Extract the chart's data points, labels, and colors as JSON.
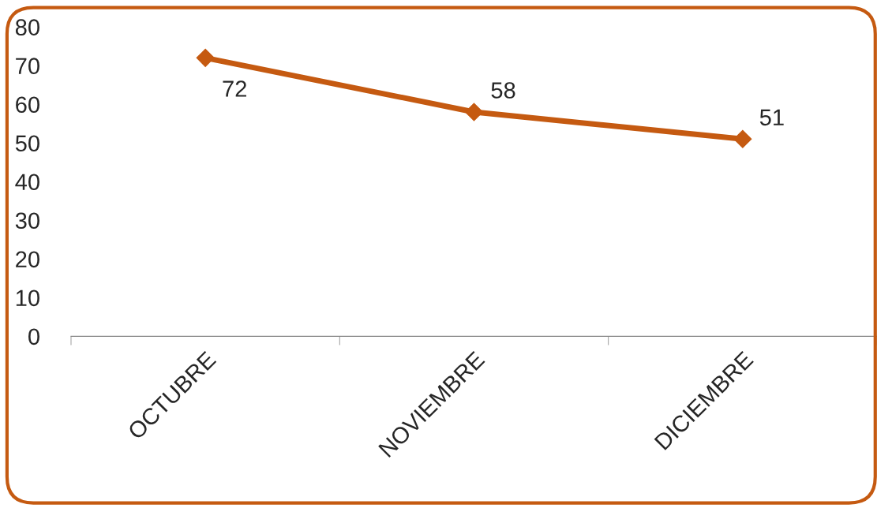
{
  "chart_data": {
    "type": "line",
    "categories": [
      "OCTUBRE",
      "NOVIEMBRE",
      "DICIEMBRE"
    ],
    "series": [
      {
        "color": "#c55a11",
        "values": [
          72,
          58,
          51
        ]
      }
    ],
    "ylim": [
      0,
      80
    ],
    "yticks": [
      0,
      10,
      20,
      30,
      40,
      50,
      60,
      70,
      80
    ],
    "marker": "diamond",
    "line_style": "solid",
    "data_labels": true,
    "grid": false,
    "legend": false
  }
}
